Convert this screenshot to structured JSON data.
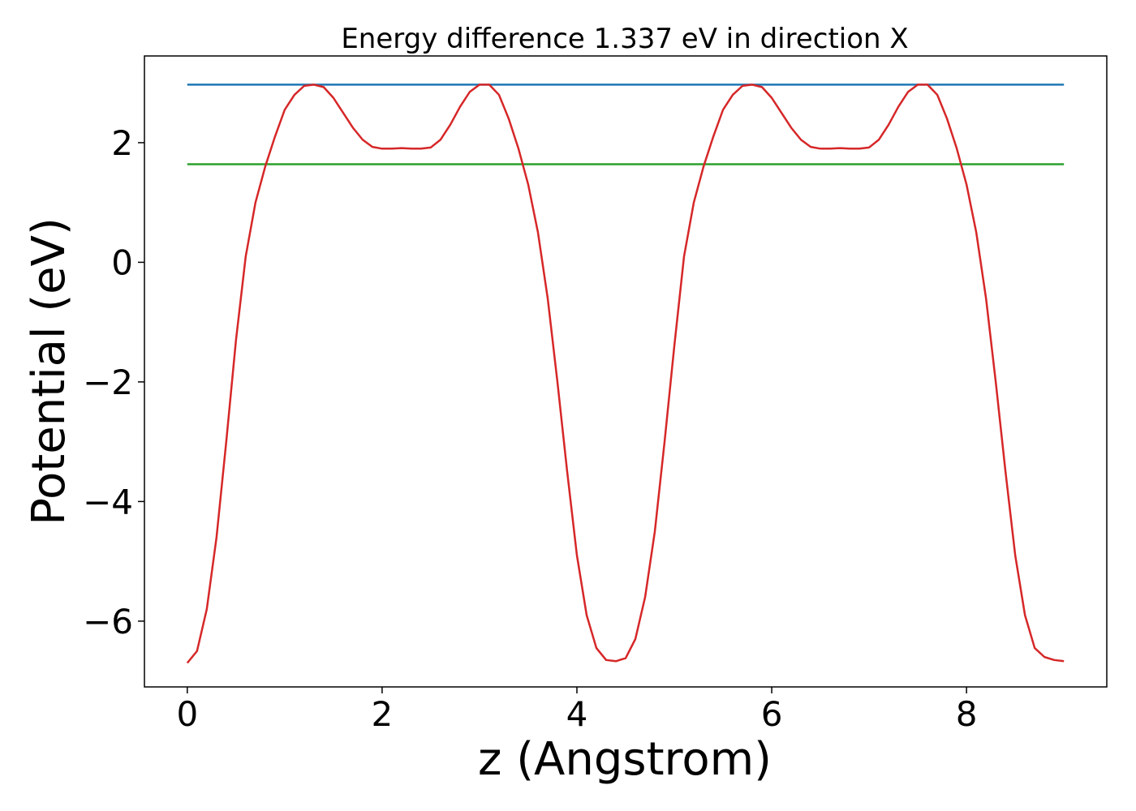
{
  "chart_data": {
    "type": "line",
    "title": "Energy difference 1.337 eV in direction X",
    "xlabel": "z (Angstrom)",
    "ylabel": "Potential (eV)",
    "xlim": [
      -0.44,
      9.44
    ],
    "ylim": [
      -7.1,
      3.45
    ],
    "grid": false,
    "x_ticks": [
      {
        "value": 0,
        "label": "0"
      },
      {
        "value": 2,
        "label": "2"
      },
      {
        "value": 4,
        "label": "4"
      },
      {
        "value": 6,
        "label": "6"
      },
      {
        "value": 8,
        "label": "8"
      }
    ],
    "y_ticks": [
      {
        "value": -6,
        "label": "−6"
      },
      {
        "value": -4,
        "label": "−4"
      },
      {
        "value": -2,
        "label": "−2"
      },
      {
        "value": 0,
        "label": "0"
      },
      {
        "value": 2,
        "label": "2"
      }
    ],
    "series": [
      {
        "color": "#1f77b4",
        "x": [
          0,
          9
        ],
        "y": [
          2.97,
          2.97
        ]
      },
      {
        "color": "#2ca02c",
        "x": [
          0,
          9
        ],
        "y": [
          1.64,
          1.64
        ]
      },
      {
        "color": "#d62728",
        "x": [
          0,
          0.1,
          0.2,
          0.3,
          0.4,
          0.5,
          0.6,
          0.7,
          0.8,
          0.9,
          1.0,
          1.1,
          1.2,
          1.3,
          1.4,
          1.5,
          1.6,
          1.7,
          1.8,
          1.9,
          2.0,
          2.1,
          2.2,
          2.3,
          2.4,
          2.5,
          2.6,
          2.7,
          2.8,
          2.9,
          3.0,
          3.1,
          3.2,
          3.3,
          3.4,
          3.5,
          3.6,
          3.7,
          3.8,
          3.9,
          4.0,
          4.1,
          4.2,
          4.3,
          4.4,
          4.5,
          4.6,
          4.7,
          4.8,
          4.9,
          5.0,
          5.1,
          5.2,
          5.3,
          5.4,
          5.5,
          5.6,
          5.7,
          5.8,
          5.9,
          6.0,
          6.1,
          6.2,
          6.3,
          6.4,
          6.5,
          6.6,
          6.7,
          6.8,
          6.9,
          7.0,
          7.1,
          7.2,
          7.3,
          7.4,
          7.5,
          7.6,
          7.7,
          7.8,
          7.9,
          8.0,
          8.1,
          8.2,
          8.3,
          8.4,
          8.5,
          8.6,
          8.7,
          8.8,
          8.9,
          9.0
        ],
        "y": [
          -6.7,
          -6.5,
          -5.8,
          -4.6,
          -3.0,
          -1.3,
          0.1,
          1.0,
          1.6,
          2.1,
          2.55,
          2.8,
          2.95,
          2.97,
          2.93,
          2.75,
          2.5,
          2.25,
          2.05,
          1.93,
          1.9,
          1.9,
          1.91,
          1.9,
          1.9,
          1.92,
          2.05,
          2.3,
          2.6,
          2.85,
          2.97,
          2.97,
          2.8,
          2.4,
          1.9,
          1.3,
          0.5,
          -0.6,
          -2.0,
          -3.5,
          -4.9,
          -5.9,
          -6.45,
          -6.65,
          -6.67,
          -6.62,
          -6.3,
          -5.6,
          -4.5,
          -3.0,
          -1.4,
          0.1,
          1.0,
          1.6,
          2.1,
          2.55,
          2.8,
          2.95,
          2.97,
          2.93,
          2.75,
          2.5,
          2.25,
          2.05,
          1.93,
          1.9,
          1.9,
          1.91,
          1.9,
          1.9,
          1.92,
          2.05,
          2.3,
          2.6,
          2.85,
          2.97,
          2.97,
          2.8,
          2.4,
          1.9,
          1.3,
          0.5,
          -0.6,
          -2.0,
          -3.5,
          -4.9,
          -5.9,
          -6.45,
          -6.6,
          -6.65,
          -6.67
        ]
      }
    ]
  }
}
